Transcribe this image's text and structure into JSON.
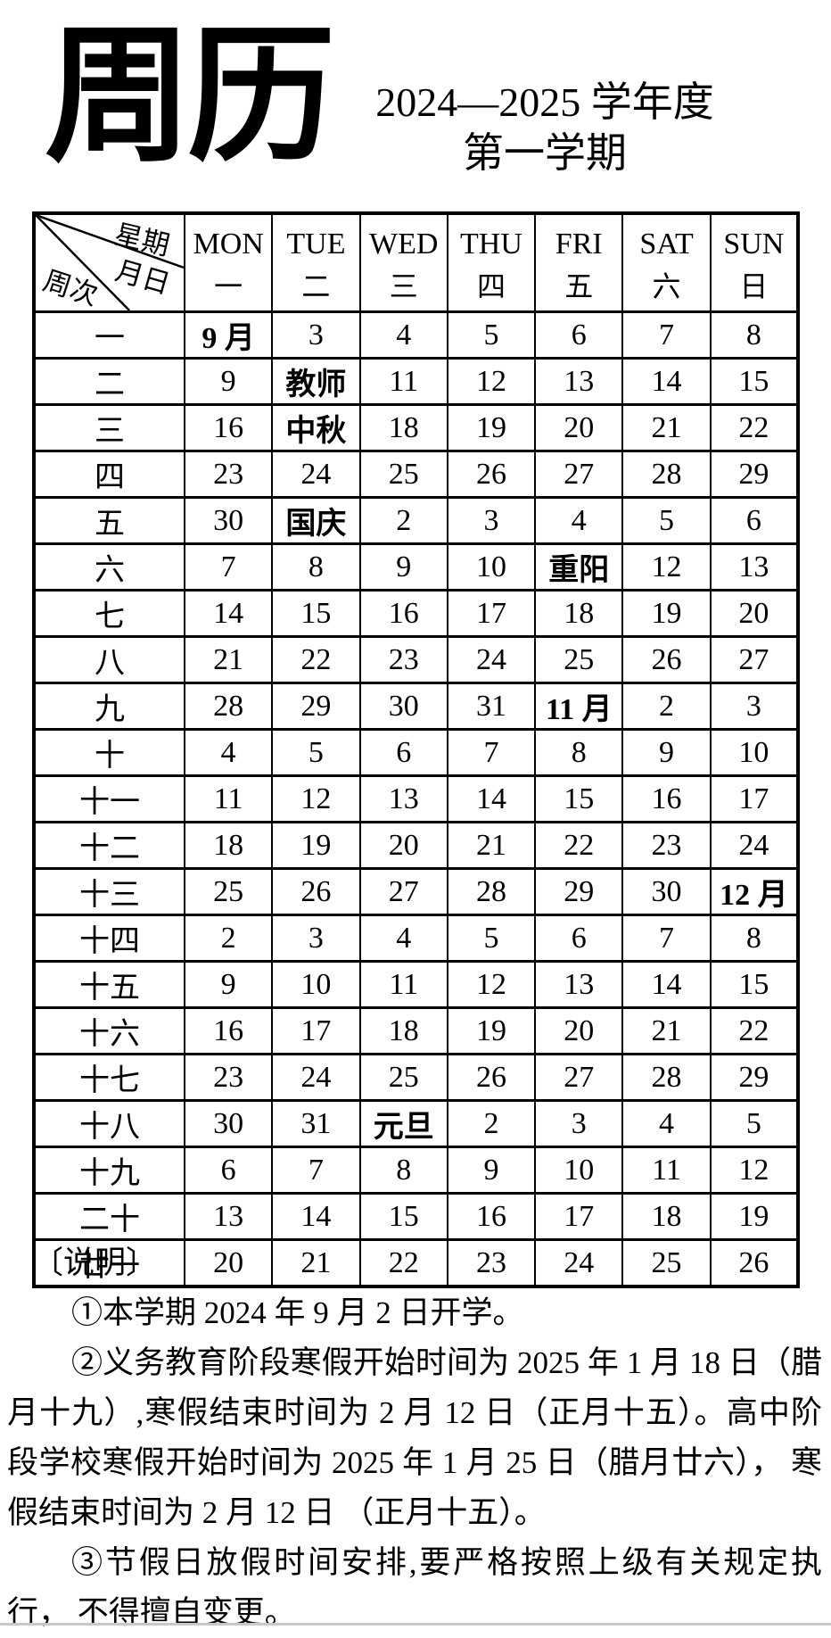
{
  "page": {
    "title": "周历",
    "subtitle_line1": "2024—2025 学年度",
    "subtitle_line2": "第一学期"
  },
  "calendar": {
    "corner": {
      "weekday_label": "星期",
      "monthday_label": "月日",
      "week_label": "周次"
    },
    "day_columns": [
      {
        "en": "MON",
        "zh": "一"
      },
      {
        "en": "TUE",
        "zh": "二"
      },
      {
        "en": "WED",
        "zh": "三"
      },
      {
        "en": "THU",
        "zh": "四"
      },
      {
        "en": "FRI",
        "zh": "五"
      },
      {
        "en": "SAT",
        "zh": "六"
      },
      {
        "en": "SUN",
        "zh": "日"
      }
    ],
    "rows": [
      {
        "week": "一",
        "cells": [
          {
            "t": "9 月",
            "b": true
          },
          "3",
          "4",
          "5",
          "6",
          "7",
          "8"
        ]
      },
      {
        "week": "二",
        "cells": [
          "9",
          {
            "t": "教师",
            "b": true
          },
          "11",
          "12",
          "13",
          "14",
          "15"
        ]
      },
      {
        "week": "三",
        "cells": [
          "16",
          {
            "t": "中秋",
            "b": true
          },
          "18",
          "19",
          "20",
          "21",
          "22"
        ]
      },
      {
        "week": "四",
        "cells": [
          "23",
          "24",
          "25",
          "26",
          "27",
          "28",
          "29"
        ]
      },
      {
        "week": "五",
        "cells": [
          "30",
          {
            "t": "国庆",
            "b": true
          },
          "2",
          "3",
          "4",
          "5",
          "6"
        ]
      },
      {
        "week": "六",
        "cells": [
          "7",
          "8",
          "9",
          "10",
          {
            "t": "重阳",
            "b": true
          },
          "12",
          "13"
        ]
      },
      {
        "week": "七",
        "cells": [
          "14",
          "15",
          "16",
          "17",
          "18",
          "19",
          "20"
        ]
      },
      {
        "week": "八",
        "cells": [
          "21",
          "22",
          "23",
          "24",
          "25",
          "26",
          "27"
        ]
      },
      {
        "week": "九",
        "cells": [
          "28",
          "29",
          "30",
          "31",
          {
            "t": "11 月",
            "b": true
          },
          "2",
          "3"
        ]
      },
      {
        "week": "十",
        "cells": [
          "4",
          "5",
          "6",
          "7",
          "8",
          "9",
          "10"
        ]
      },
      {
        "week": "十一",
        "cells": [
          "11",
          "12",
          "13",
          "14",
          "15",
          "16",
          "17"
        ]
      },
      {
        "week": "十二",
        "cells": [
          "18",
          "19",
          "20",
          "21",
          "22",
          "23",
          "24"
        ]
      },
      {
        "week": "十三",
        "cells": [
          "25",
          "26",
          "27",
          "28",
          "29",
          "30",
          {
            "t": "12 月",
            "b": true
          }
        ]
      },
      {
        "week": "十四",
        "cells": [
          "2",
          "3",
          "4",
          "5",
          "6",
          "7",
          "8"
        ]
      },
      {
        "week": "十五",
        "cells": [
          "9",
          "10",
          "11",
          "12",
          "13",
          "14",
          "15"
        ]
      },
      {
        "week": "十六",
        "cells": [
          "16",
          "17",
          "18",
          "19",
          "20",
          "21",
          "22"
        ]
      },
      {
        "week": "十七",
        "cells": [
          "23",
          "24",
          "25",
          "26",
          "27",
          "28",
          "29"
        ]
      },
      {
        "week": "十八",
        "cells": [
          "30",
          "31",
          {
            "t": "元旦",
            "b": true
          },
          "2",
          "3",
          "4",
          "5"
        ]
      },
      {
        "week": "十九",
        "cells": [
          "6",
          "7",
          "8",
          "9",
          "10",
          "11",
          "12"
        ]
      },
      {
        "week": "二十",
        "cells": [
          "13",
          "14",
          "15",
          "16",
          "17",
          "18",
          "19"
        ]
      },
      {
        "week": "廿一",
        "cells": [
          "20",
          "21",
          "22",
          "23",
          "24",
          "25",
          "26"
        ]
      }
    ]
  },
  "notes": {
    "heading": "〔说明〕",
    "items": [
      "①本学期 2024 年 9 月 2 日开学。",
      "②义务教育阶段寒假开始时间为 2025 年 1 月 18 日（腊月十九）,寒假结束时间为 2 月 12 日（正月十五）。高中阶段学校寒假开始时间为 2025 年 1 月 25 日（腊月廿六）， 寒假结束时间为 2 月 12 日 （正月十五）。",
      "③节假日放假时间安排,要严格按照上级有关规定执行， 不得擅自变更。"
    ]
  },
  "colors": {
    "text": "#000000",
    "background": "#ffffff",
    "table_border": "#000000",
    "bottom_rule": "#c8c8c8"
  }
}
